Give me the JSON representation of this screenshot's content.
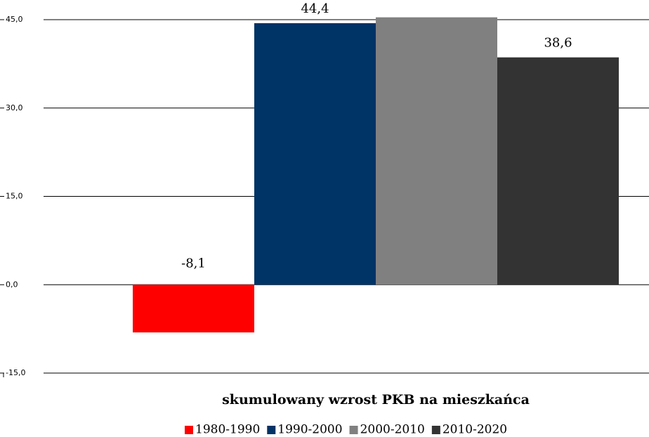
{
  "chart_data": {
    "type": "bar",
    "x_label": "skumulowany wzrost PKB na mieszkańca",
    "categories": [
      null
    ],
    "series": [
      {
        "name": "1980-1990",
        "color": "#ff0000",
        "values": [
          -8.1
        ],
        "value_labels": [
          "-8,1"
        ]
      },
      {
        "name": "1990-2000",
        "color": "#003366",
        "values": [
          44.4
        ],
        "value_labels": [
          "44,4"
        ]
      },
      {
        "name": "2000-2010",
        "color": "#808080",
        "values": [
          45.4
        ]
      },
      {
        "name": "2010-2020",
        "color": "#333333",
        "values": [
          38.6
        ],
        "value_labels": [
          "38,6"
        ]
      }
    ],
    "ylim": [
      -15,
      45
    ],
    "yticks": [
      {
        "value": -15,
        "label": "-15,0"
      },
      {
        "value": 0,
        "label": "0,0"
      },
      {
        "value": 15,
        "label": "15,0"
      },
      {
        "value": 30,
        "label": "30,0"
      },
      {
        "value": 45,
        "label": "45,0"
      }
    ],
    "grid": true,
    "legend": "bottom"
  }
}
